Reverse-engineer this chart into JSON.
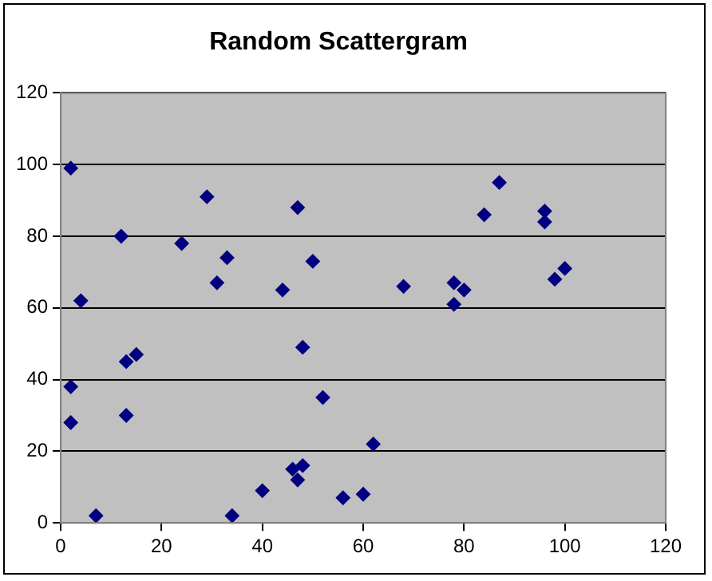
{
  "chart_data": {
    "type": "scatter",
    "title": "Random Scattergram",
    "series": [
      {
        "color": "#000080",
        "x": [
          2,
          2,
          2,
          4,
          7,
          12,
          13,
          13,
          15,
          24,
          29,
          31,
          33,
          34,
          40,
          44,
          46,
          47,
          47,
          48,
          48,
          50,
          52,
          56,
          60,
          62,
          68,
          78,
          78,
          80,
          84,
          87,
          96,
          96,
          98,
          100
        ],
        "values": [
          99,
          38,
          28,
          62,
          2,
          80,
          45,
          30,
          47,
          78,
          91,
          67,
          74,
          2,
          9,
          65,
          15,
          88,
          12,
          16,
          49,
          73,
          35,
          7,
          8,
          22,
          66,
          67,
          61,
          65,
          86,
          95,
          87,
          84,
          68,
          71
        ]
      }
    ],
    "xlim": [
      0,
      120
    ],
    "xticks": [
      0,
      20,
      40,
      60,
      80,
      100,
      120
    ],
    "ylim": [
      0,
      120
    ],
    "yticks": [
      0,
      20,
      40,
      60,
      80,
      100,
      120
    ],
    "grid": "y",
    "marker": "diamond",
    "legend": false
  }
}
